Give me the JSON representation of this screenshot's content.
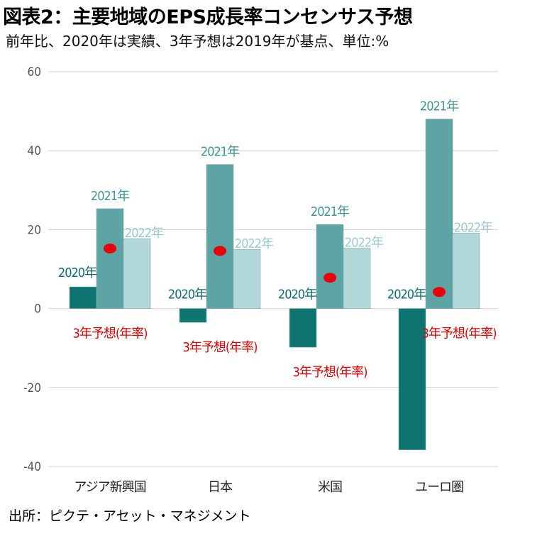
{
  "title": "図表2：主要地域のEPS成長率コンセンサス予想",
  "subtitle": "前年比、2020年は実績、3年予想は2019年が基点、単位:%",
  "source": "出所：ピクテ・アセット・マネジメント",
  "colors": {
    "series_2020": "#0e7470",
    "series_2021": "#5ea4a4",
    "series_2022": "#b2d7d8",
    "forecast_dot": "#e8000b",
    "label_2020": "#0e6e6a",
    "label_2021": "#3f9594",
    "label_2022": "#9bcbcc",
    "forecast_label": "#e00000",
    "grid": "#d4d4d4",
    "axis_text": "#555555"
  },
  "chart_data": {
    "type": "bar",
    "categories": [
      "アジア新興国",
      "日本",
      "米国",
      "ユーロ圏"
    ],
    "series": [
      {
        "name": "2020年",
        "values": [
          5.5,
          -3.5,
          -9.8,
          -35.8
        ]
      },
      {
        "name": "2021年",
        "values": [
          25.3,
          36.5,
          21.3,
          48.0
        ]
      },
      {
        "name": "2022年",
        "values": [
          17.7,
          15.0,
          15.3,
          19.1
        ]
      }
    ],
    "forecast": {
      "name": "3年予想(年率)",
      "values": [
        15.2,
        14.6,
        7.8,
        4.2
      ]
    },
    "yticks": [
      -40,
      -20,
      0,
      20,
      40,
      60
    ],
    "ylim": [
      -40,
      60
    ],
    "grid": true
  }
}
